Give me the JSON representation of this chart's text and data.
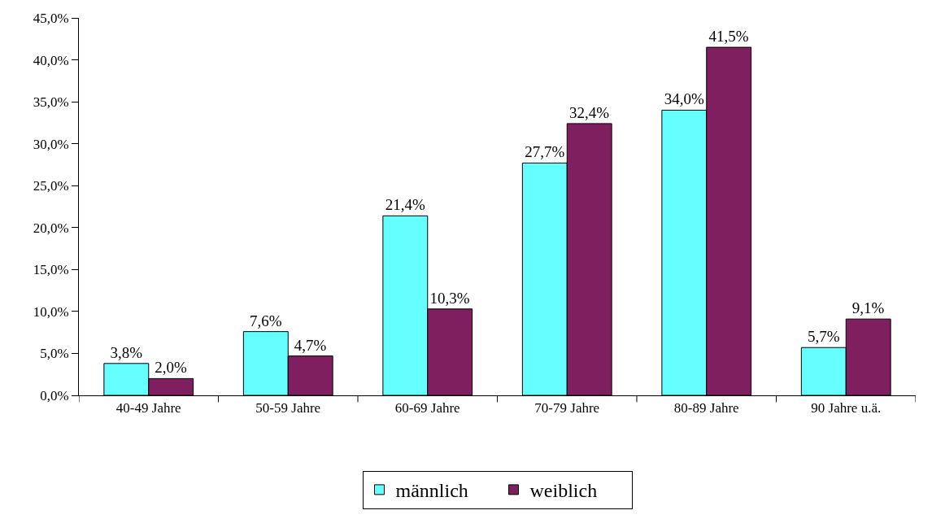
{
  "chart_data": {
    "type": "bar",
    "categories": [
      "40-49 Jahre",
      "50-59 Jahre",
      "60-69 Jahre",
      "70-79 Jahre",
      "80-89 Jahre",
      "90 Jahre u.ä."
    ],
    "series": [
      {
        "name": "männlich",
        "color": "#66ffff",
        "values": [
          3.8,
          7.6,
          21.4,
          27.7,
          34.0,
          5.7
        ],
        "value_labels": [
          "3,8%",
          "7,6%",
          "21,4%",
          "27,7%",
          "34,0%",
          "5,7%"
        ]
      },
      {
        "name": "weiblich",
        "color": "#7f1f5f",
        "values": [
          2.0,
          4.7,
          10.3,
          32.4,
          41.5,
          9.1
        ],
        "value_labels": [
          "2,0%",
          "4,7%",
          "10,3%",
          "32,4%",
          "41,5%",
          "9,1%"
        ]
      }
    ],
    "ylim": [
      0,
      45
    ],
    "yticks": [
      {
        "value": 0,
        "label": "0,0%"
      },
      {
        "value": 5,
        "label": "5,0%"
      },
      {
        "value": 10,
        "label": "10,0%"
      },
      {
        "value": 15,
        "label": "15,0%"
      },
      {
        "value": 20,
        "label": "20,0%"
      },
      {
        "value": 25,
        "label": "25,0%"
      },
      {
        "value": 30,
        "label": "30,0%"
      },
      {
        "value": 35,
        "label": "35,0%"
      },
      {
        "value": 40,
        "label": "40,0%"
      },
      {
        "value": 45,
        "label": "45,0%"
      }
    ],
    "grid": false,
    "legend": "bottom"
  }
}
